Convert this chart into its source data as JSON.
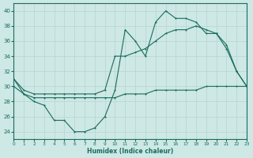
{
  "xlabel": "Humidex (Indice chaleur)",
  "xlim": [
    0,
    23
  ],
  "ylim": [
    23,
    41
  ],
  "yticks": [
    24,
    26,
    28,
    30,
    32,
    34,
    36,
    38,
    40
  ],
  "xticks": [
    0,
    1,
    2,
    3,
    4,
    5,
    6,
    7,
    8,
    9,
    10,
    11,
    12,
    13,
    14,
    15,
    16,
    17,
    18,
    19,
    20,
    21,
    22,
    23
  ],
  "bg_color": "#cde8e5",
  "grid_color": "#b5d5d0",
  "line_color": "#1a6b5e",
  "series1_x": [
    0,
    1,
    2,
    3,
    4,
    5,
    6,
    7,
    8,
    9,
    10,
    11,
    12,
    13,
    14,
    15,
    16,
    17,
    18,
    19,
    20,
    21,
    22,
    23
  ],
  "series1_y": [
    31,
    29,
    28,
    27.5,
    25.5,
    25.5,
    24,
    24,
    24.5,
    26,
    29.5,
    37.5,
    36,
    34,
    38.5,
    40,
    39,
    39,
    38.5,
    37,
    37,
    35,
    32,
    30
  ],
  "series2_x": [
    0,
    1,
    2,
    3,
    4,
    5,
    6,
    7,
    8,
    9,
    10,
    11,
    12,
    13,
    14,
    15,
    16,
    17,
    18,
    19,
    20,
    21,
    22,
    23
  ],
  "series2_y": [
    31,
    29.5,
    29,
    29,
    29,
    29,
    29,
    29,
    29,
    29.5,
    34,
    34,
    34.5,
    35,
    36,
    37,
    37.5,
    37.5,
    38,
    37.5,
    37,
    35.5,
    32,
    30
  ],
  "series3_x": [
    0,
    1,
    2,
    3,
    4,
    5,
    6,
    7,
    8,
    9,
    10,
    11,
    12,
    13,
    14,
    15,
    16,
    17,
    18,
    19,
    20,
    21,
    22,
    23
  ],
  "series3_y": [
    30,
    29,
    28.5,
    28.5,
    28.5,
    28.5,
    28.5,
    28.5,
    28.5,
    28.5,
    28.5,
    29,
    29,
    29,
    29.5,
    29.5,
    29.5,
    29.5,
    29.5,
    30,
    30,
    30,
    30,
    30
  ]
}
